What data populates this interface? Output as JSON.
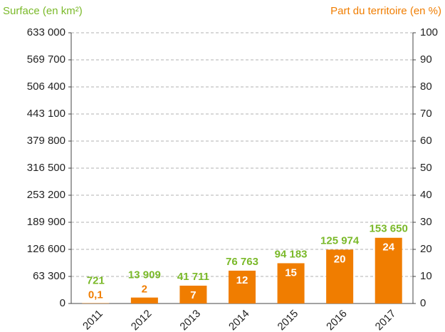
{
  "chart_data": {
    "type": "bar",
    "y_label": "Surface (en km²)",
    "y2_label": "Part du territoire (en %)",
    "categories": [
      "2011",
      "2012",
      "2013",
      "2014",
      "2015",
      "2016",
      "2017"
    ],
    "series": [
      {
        "name": "Surface (en km²)",
        "color": "#f07d00",
        "label_color": "#7ab929",
        "values": [
          721,
          13909,
          41711,
          76763,
          94183,
          125974,
          153650
        ],
        "value_labels": [
          "721",
          "13 909",
          "41 711",
          "76 763",
          "94 183",
          "125 974",
          "153 650"
        ]
      },
      {
        "name": "Part du territoire (en %)",
        "axis": "y2",
        "color": "#f07d00",
        "values": [
          0.1,
          2,
          7,
          12,
          15,
          20,
          24
        ],
        "value_labels": [
          "0,1",
          "2",
          "7",
          "12",
          "15",
          "20",
          "24"
        ]
      }
    ],
    "ylim": [
      0,
      633000
    ],
    "yticks": [
      0,
      {
        "value": 63300,
        "label": "63 300"
      },
      {
        "value": 126600,
        "label": "126 600"
      },
      {
        "value": 189900,
        "label": "189 900"
      },
      {
        "value": 253200,
        "label": "253 200"
      },
      {
        "value": 316500,
        "label": "316 500"
      },
      {
        "value": 379800,
        "label": "379 800"
      },
      {
        "value": 443100,
        "label": "443 100"
      },
      {
        "value": 506400,
        "label": "506 400"
      },
      {
        "value": 569700,
        "label": "569 700"
      },
      {
        "value": 633000,
        "label": "633 000"
      }
    ],
    "y2lim": [
      0,
      100
    ],
    "y2ticks": [
      0,
      10,
      20,
      30,
      40,
      50,
      60,
      70,
      80,
      90,
      100
    ],
    "grid": true
  }
}
